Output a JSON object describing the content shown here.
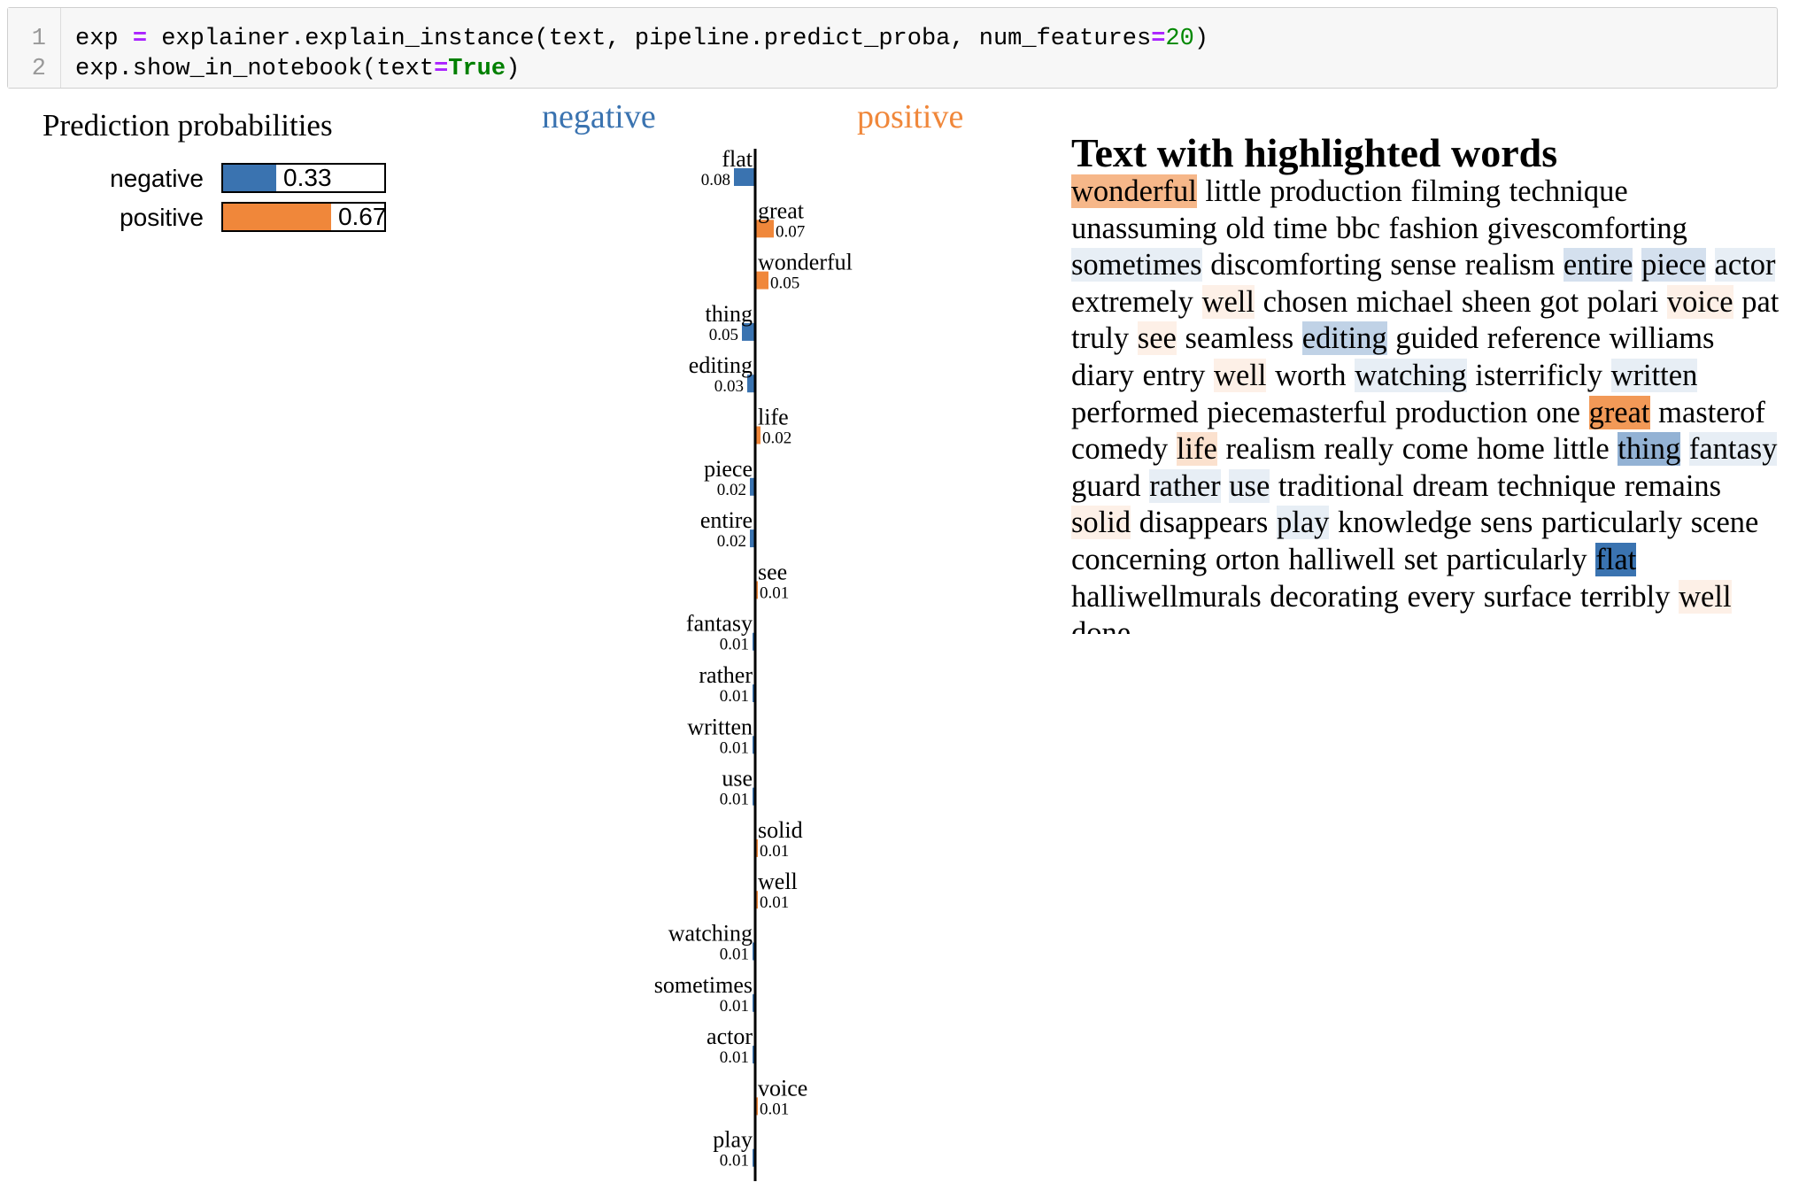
{
  "code_cell": {
    "line_numbers": [
      "1",
      "2"
    ],
    "line1": {
      "var": "exp ",
      "eq": "=",
      "call": " explainer.explain_instance(text, pipeline.predict_proba, num_features",
      "eq2": "=",
      "num": "20",
      "close": ")"
    },
    "line2": {
      "call": "exp.show_in_notebook(text",
      "eq": "=",
      "kw": "True",
      "close": ")"
    }
  },
  "prediction": {
    "title": "Prediction probabilities",
    "classes": [
      {
        "label": "negative",
        "value": 0.33,
        "value_text": "0.33",
        "color": "#3a73b0"
      },
      {
        "label": "positive",
        "value": 0.67,
        "value_text": "0.67",
        "color": "#f0873a"
      }
    ]
  },
  "chart_labels": {
    "negative": "negative",
    "positive": "positive"
  },
  "colors": {
    "negative": "#3a73b0",
    "positive": "#f0873a"
  },
  "chart_data": {
    "type": "bar",
    "categories": [
      "flat",
      "great",
      "wonderful",
      "thing",
      "editing",
      "life",
      "piece",
      "entire",
      "see",
      "fantasy",
      "rather",
      "written",
      "use",
      "solid",
      "well",
      "watching",
      "sometimes",
      "actor",
      "voice",
      "play"
    ],
    "series": [
      {
        "values": [
          -0.08,
          0.07,
          0.05,
          -0.05,
          -0.03,
          0.02,
          -0.02,
          -0.02,
          0.01,
          -0.01,
          -0.01,
          -0.01,
          -0.01,
          0.01,
          0.01,
          -0.01,
          -0.01,
          -0.01,
          0.01,
          -0.01
        ]
      }
    ],
    "value_labels": [
      "0.08",
      "0.07",
      "0.05",
      "0.05",
      "0.03",
      "0.02",
      "0.02",
      "0.02",
      "0.01",
      "0.01",
      "0.01",
      "0.01",
      "0.01",
      "0.01",
      "0.01",
      "0.01",
      "0.01",
      "0.01",
      "0.01",
      "0.01"
    ],
    "orientation": "horizontal"
  },
  "highlighted_text": {
    "title": "Text with highlighted words",
    "tokens": [
      {
        "t": "wonderful",
        "c": "positive",
        "a": 0.6
      },
      {
        "t": "little"
      },
      {
        "t": "production"
      },
      {
        "t": "filming"
      },
      {
        "t": "technique"
      },
      {
        "t": "unassuming"
      },
      {
        "t": "old"
      },
      {
        "t": "time"
      },
      {
        "t": "bbc"
      },
      {
        "t": "fashion"
      },
      {
        "t": "givescomforting"
      },
      {
        "t": "sometimes",
        "c": "negative",
        "a": 0.12
      },
      {
        "t": "discomforting"
      },
      {
        "t": "sense"
      },
      {
        "t": "realism"
      },
      {
        "t": "entire",
        "c": "negative",
        "a": 0.22
      },
      {
        "t": "piece",
        "c": "negative",
        "a": 0.22
      },
      {
        "t": "actor",
        "c": "negative",
        "a": 0.12
      },
      {
        "t": "extremely"
      },
      {
        "t": "well",
        "c": "positive",
        "a": 0.12
      },
      {
        "t": "chosen"
      },
      {
        "t": "michael"
      },
      {
        "t": "sheen"
      },
      {
        "t": "got"
      },
      {
        "t": "polari"
      },
      {
        "t": "voice",
        "c": "positive",
        "a": 0.12
      },
      {
        "t": "pat"
      },
      {
        "t": "truly"
      },
      {
        "t": "see",
        "c": "positive",
        "a": 0.12
      },
      {
        "t": "seamless"
      },
      {
        "t": "editing",
        "c": "negative",
        "a": 0.32
      },
      {
        "t": "guided"
      },
      {
        "t": "reference"
      },
      {
        "t": "williams"
      },
      {
        "t": "diary"
      },
      {
        "t": "entry"
      },
      {
        "t": "well",
        "c": "positive",
        "a": 0.12
      },
      {
        "t": "worth"
      },
      {
        "t": "watching",
        "c": "negative",
        "a": 0.12
      },
      {
        "t": "isterrificly"
      },
      {
        "t": "written",
        "c": "negative",
        "a": 0.12
      },
      {
        "t": "performed"
      },
      {
        "t": "piecemasterful"
      },
      {
        "t": "production"
      },
      {
        "t": "one"
      },
      {
        "t": "great",
        "c": "positive",
        "a": 0.85
      },
      {
        "t": "masterof"
      },
      {
        "t": "comedy"
      },
      {
        "t": "life",
        "c": "positive",
        "a": 0.25
      },
      {
        "t": "realism"
      },
      {
        "t": "really"
      },
      {
        "t": "come"
      },
      {
        "t": "home"
      },
      {
        "t": "little"
      },
      {
        "t": "thing",
        "c": "negative",
        "a": 0.55
      },
      {
        "t": "fantasy",
        "c": "negative",
        "a": 0.12
      },
      {
        "t": "guard"
      },
      {
        "t": "rather",
        "c": "negative",
        "a": 0.12
      },
      {
        "t": "use",
        "c": "negative",
        "a": 0.12
      },
      {
        "t": "traditional"
      },
      {
        "t": "dream"
      },
      {
        "t": "technique"
      },
      {
        "t": "remains"
      },
      {
        "t": "solid",
        "c": "positive",
        "a": 0.12
      },
      {
        "t": "disappears"
      },
      {
        "t": "play",
        "c": "negative",
        "a": 0.12
      },
      {
        "t": "knowledge"
      },
      {
        "t": "sens"
      },
      {
        "t": "particularly"
      },
      {
        "t": "scene"
      },
      {
        "t": "concerning"
      },
      {
        "t": "orton"
      },
      {
        "t": "halliwell"
      },
      {
        "t": "set"
      },
      {
        "t": "particularly"
      },
      {
        "t": "flat",
        "c": "negative",
        "a": 1.0
      },
      {
        "t": "halliwellmurals"
      },
      {
        "t": "decorating"
      },
      {
        "t": "every"
      },
      {
        "t": "surface"
      },
      {
        "t": "terribly"
      },
      {
        "t": "well",
        "c": "positive",
        "a": 0.12
      },
      {
        "t": "done"
      }
    ]
  }
}
